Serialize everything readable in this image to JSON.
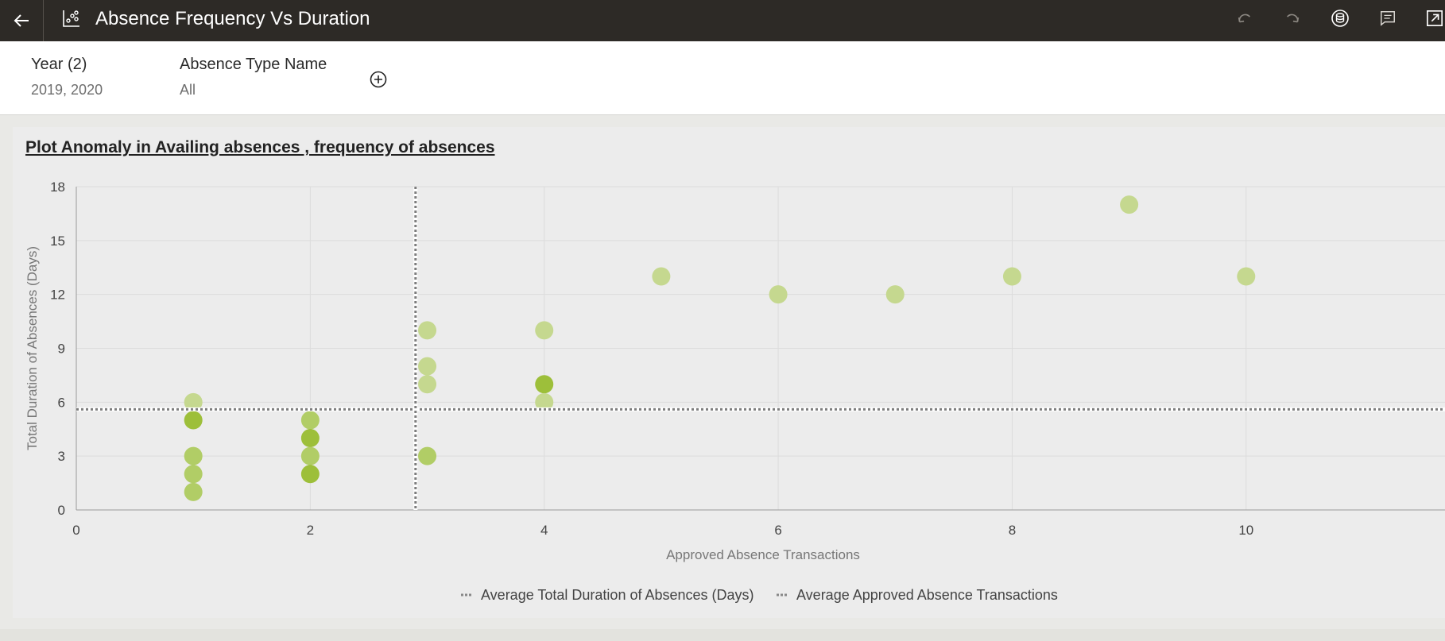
{
  "header": {
    "title": "Absence Frequency Vs Duration",
    "icons": [
      "back-arrow-icon",
      "scatter-chart-icon",
      "undo-icon",
      "redo-icon",
      "data-icon",
      "comment-icon",
      "expand-icon"
    ]
  },
  "filters": [
    {
      "label": "Year (2)",
      "value": "2019, 2020"
    },
    {
      "label": "Absence Type Name",
      "value": "All"
    }
  ],
  "colors": {
    "topbar": "#2d2a26",
    "point_light": "#c5d88f",
    "point_mid": "#b1cd66",
    "point_dark": "#9dbf3a",
    "reference_line": "#7d7d7d"
  },
  "chart_data": {
    "type": "scatter",
    "title": "Plot Anomaly in Availing absences , frequency of absences",
    "xlabel": "Approved Absence Transactions",
    "ylabel": "Total Duration of Absences (Days)",
    "xlim": [
      0,
      11.7
    ],
    "ylim": [
      0,
      18
    ],
    "xticks": [
      0,
      2,
      4,
      6,
      8,
      10
    ],
    "yticks": [
      0,
      3,
      6,
      9,
      12,
      15,
      18
    ],
    "grid": true,
    "points": [
      {
        "x": 1,
        "y": 6,
        "shade": "light"
      },
      {
        "x": 1,
        "y": 5,
        "shade": "dark"
      },
      {
        "x": 1,
        "y": 3,
        "shade": "mid"
      },
      {
        "x": 1,
        "y": 2,
        "shade": "mid"
      },
      {
        "x": 1,
        "y": 1,
        "shade": "mid"
      },
      {
        "x": 2,
        "y": 5,
        "shade": "mid"
      },
      {
        "x": 2,
        "y": 4,
        "shade": "dark"
      },
      {
        "x": 2,
        "y": 3,
        "shade": "mid"
      },
      {
        "x": 2,
        "y": 2,
        "shade": "dark"
      },
      {
        "x": 3,
        "y": 10,
        "shade": "light"
      },
      {
        "x": 3,
        "y": 8,
        "shade": "light"
      },
      {
        "x": 3,
        "y": 7,
        "shade": "light"
      },
      {
        "x": 3,
        "y": 3,
        "shade": "mid"
      },
      {
        "x": 4,
        "y": 10,
        "shade": "light"
      },
      {
        "x": 4,
        "y": 7,
        "shade": "dark"
      },
      {
        "x": 4,
        "y": 6,
        "shade": "light"
      },
      {
        "x": 5,
        "y": 13,
        "shade": "light"
      },
      {
        "x": 6,
        "y": 12,
        "shade": "light"
      },
      {
        "x": 7,
        "y": 12,
        "shade": "light"
      },
      {
        "x": 8,
        "y": 13,
        "shade": "light"
      },
      {
        "x": 9,
        "y": 17,
        "shade": "light"
      },
      {
        "x": 10,
        "y": 13,
        "shade": "light"
      }
    ],
    "reference_lines": [
      {
        "name": "Average Total Duration of Absences (Days)",
        "axis": "y",
        "value": 5.6
      },
      {
        "name": "Average Approved Absence Transactions",
        "axis": "x",
        "value": 2.9
      }
    ],
    "legend": "bottom-center"
  }
}
